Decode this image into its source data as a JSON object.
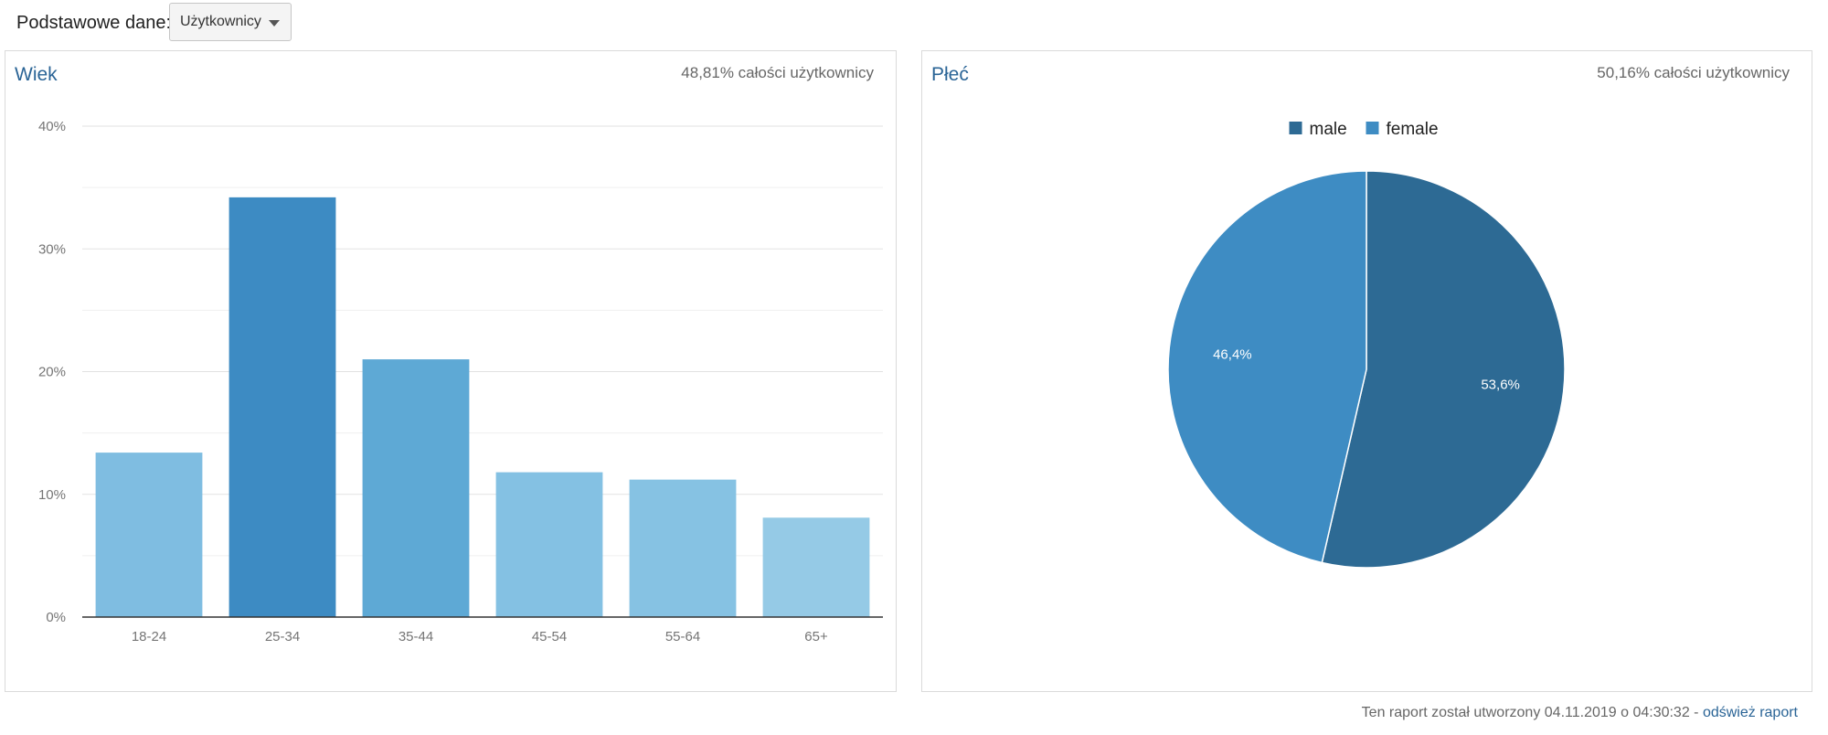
{
  "header": {
    "label": "Podstawowe dane:",
    "selected_metric": "Użytkownicy"
  },
  "age_card": {
    "title": "Wiek",
    "meta": "48,81% całości użytkownicy"
  },
  "gender_card": {
    "title": "Płeć",
    "meta": "50,16% całości użytkownicy"
  },
  "footer": {
    "text": "Ten raport został utworzony 04.11.2019 o 04:30:32 - ",
    "refresh_link": "odśwież raport"
  },
  "colors": {
    "bar_18_24": "#7fbde1",
    "bar_25_34": "#3d8bc3",
    "bar_35_44": "#5ea9d5",
    "bar_45_54": "#84c1e3",
    "bar_55_64": "#86c2e3",
    "bar_65_plus": "#95cae6",
    "male": "#2d6a94",
    "female": "#3e8cc3",
    "link": "#2a6496"
  },
  "chart_data": [
    {
      "type": "bar",
      "title": "Wiek",
      "categories": [
        "18-24",
        "25-34",
        "35-44",
        "45-54",
        "55-64",
        "65+"
      ],
      "values": [
        13.4,
        34.2,
        21.0,
        11.8,
        11.2,
        8.1
      ],
      "ylim": [
        0,
        40
      ],
      "yticks": [
        0,
        10,
        20,
        30,
        40
      ],
      "ytick_labels": [
        "0%",
        "10%",
        "20%",
        "30%",
        "40%"
      ],
      "grid": true,
      "xlabel": "",
      "ylabel": ""
    },
    {
      "type": "pie",
      "title": "Płeć",
      "legend_position": "top",
      "slices": [
        {
          "label": "male",
          "value": 53.6,
          "display": "53,6%"
        },
        {
          "label": "female",
          "value": 46.4,
          "display": "46,4%"
        }
      ]
    }
  ]
}
